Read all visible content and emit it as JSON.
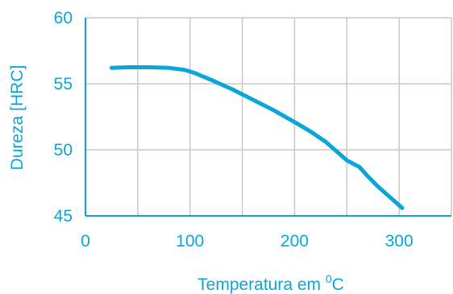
{
  "chart_data": {
    "type": "line",
    "title": "",
    "xlabel": "Temperatura em ",
    "xlabel_superscript": "0",
    "xlabel_unit": "C",
    "ylabel": "Dureza [HRC]",
    "xlim": [
      0,
      350
    ],
    "ylim": [
      45,
      60
    ],
    "x_ticks": [
      0,
      100,
      200,
      300
    ],
    "x_grid": [
      50,
      100,
      150,
      200,
      250,
      300,
      350
    ],
    "y_ticks": [
      45,
      50,
      55,
      60
    ],
    "grid": true,
    "colors": {
      "series": "#0aa5d9",
      "text": "#0aa5d9",
      "grid": "#c8c8c8",
      "axis": "#0aa5d9"
    },
    "series": [
      {
        "x": [
          25,
          40,
          60,
          80,
          95,
          105,
          120,
          140,
          160,
          180,
          200,
          215,
          230,
          240,
          250,
          262,
          270,
          280,
          290,
          303
        ],
        "y": [
          56.2,
          56.25,
          56.25,
          56.2,
          56.05,
          55.8,
          55.3,
          54.6,
          53.8,
          53.0,
          52.1,
          51.4,
          50.6,
          49.9,
          49.2,
          48.7,
          48.0,
          47.2,
          46.5,
          45.6
        ]
      }
    ]
  }
}
